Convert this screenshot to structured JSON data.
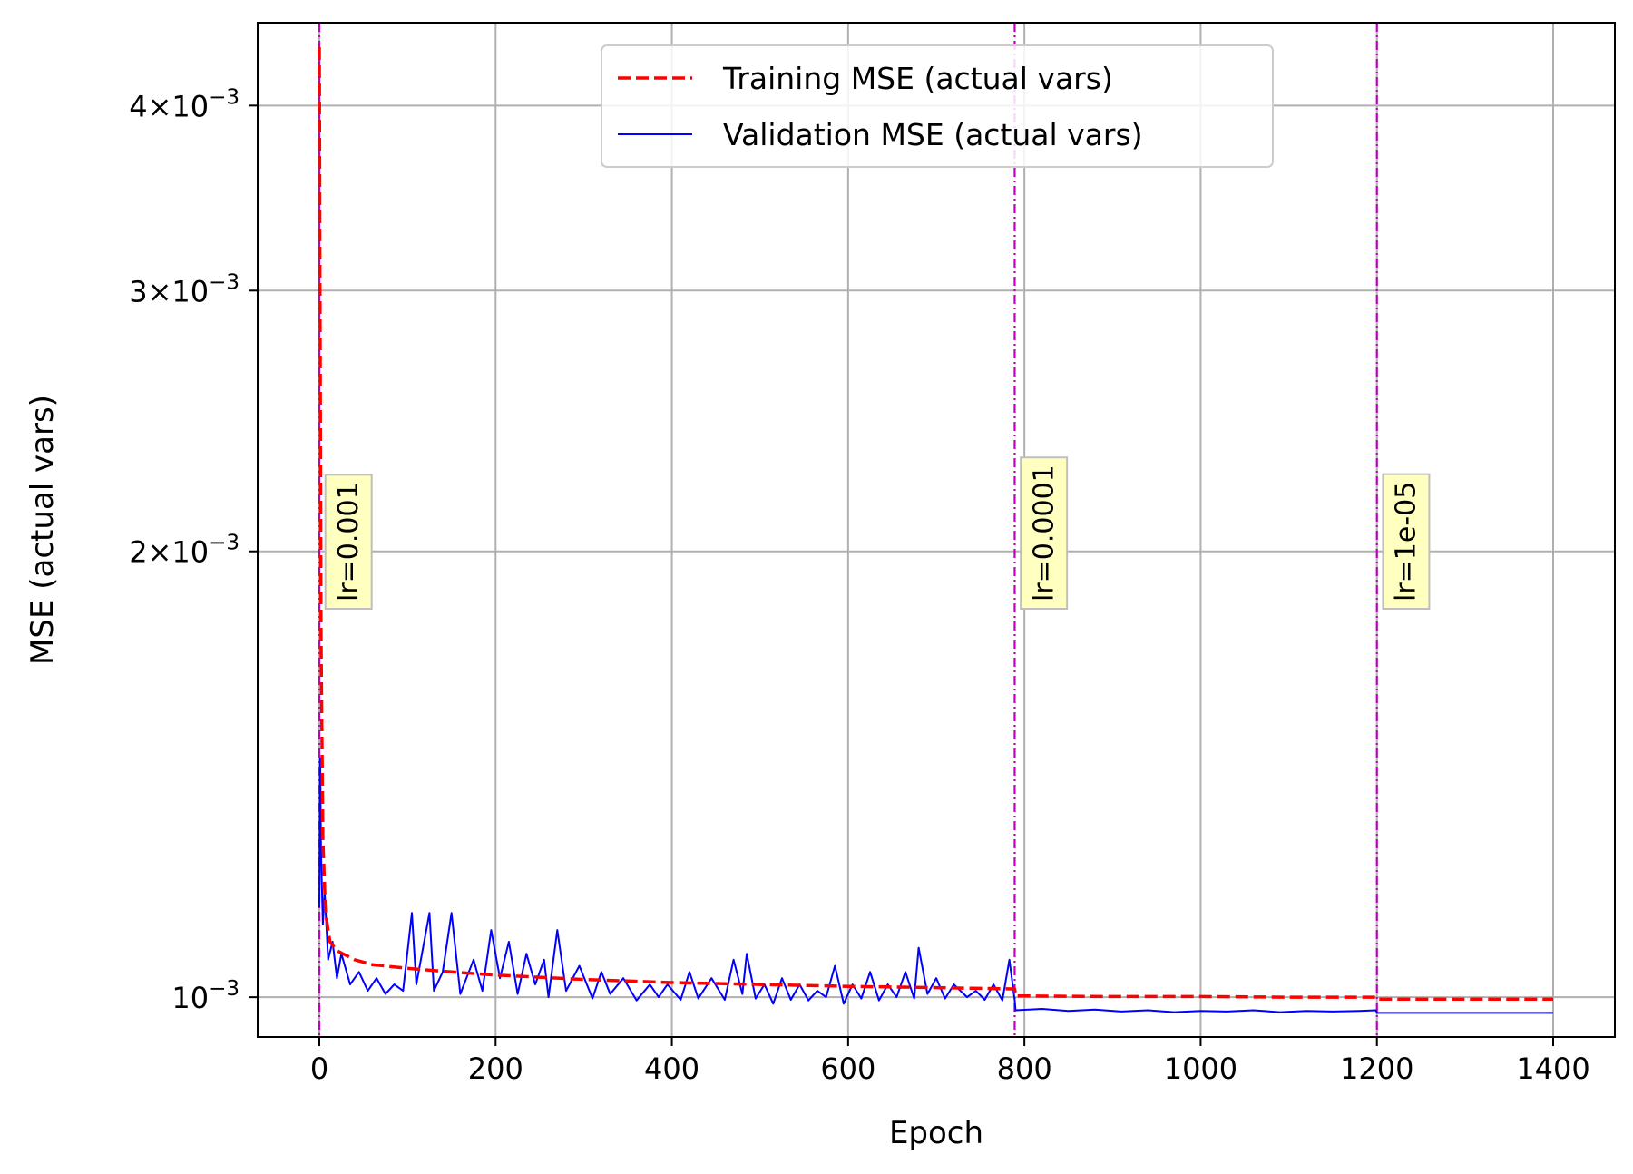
{
  "chart_data": {
    "type": "line",
    "title": "",
    "xlabel": "Epoch",
    "ylabel": "MSE (actual vars)",
    "xlim": [
      -70,
      1470
    ],
    "ylim": [
      0.00094,
      0.00455
    ],
    "yscale": "log",
    "grid": true,
    "legend_position": "upper center",
    "x_ticks": [
      0,
      200,
      400,
      600,
      800,
      1000,
      1200,
      1400
    ],
    "x_tick_labels": [
      "0",
      "200",
      "400",
      "600",
      "800",
      "1000",
      "1200",
      "1400"
    ],
    "y_ticks": [
      {
        "value": 0.004,
        "mantissa": "4",
        "exponent": "−3"
      },
      {
        "value": 0.003,
        "mantissa": "3",
        "exponent": "−3"
      },
      {
        "value": 0.002,
        "mantissa": "2",
        "exponent": "−3"
      },
      {
        "value": 0.001,
        "mantissa": "",
        "exponent": "−3"
      }
    ],
    "y_tick_base": "10",
    "series": [
      {
        "name": "Training MSE (actual vars)",
        "color": "#ff0000",
        "style": "dashed",
        "points": [
          [
            0,
            0.00438
          ],
          [
            2,
            0.00175
          ],
          [
            4,
            0.00128
          ],
          [
            7,
            0.00114
          ],
          [
            12,
            0.00109
          ],
          [
            20,
            0.001075
          ],
          [
            40,
            0.00106
          ],
          [
            60,
            0.001052
          ],
          [
            100,
            0.001046
          ],
          [
            150,
            0.00104
          ],
          [
            200,
            0.001035
          ],
          [
            300,
            0.001028
          ],
          [
            400,
            0.001023
          ],
          [
            500,
            0.00102
          ],
          [
            600,
            0.001017
          ],
          [
            700,
            0.001015
          ],
          [
            789,
            0.001013
          ],
          [
            790,
            0.001002
          ],
          [
            900,
            0.001001
          ],
          [
            1000,
            0.001001
          ],
          [
            1100,
            0.001
          ],
          [
            1200,
            0.001
          ],
          [
            1201,
            0.000997
          ],
          [
            1300,
            0.000997
          ],
          [
            1400,
            0.000997
          ]
        ]
      },
      {
        "name": "Validation MSE (actual vars)",
        "color": "#0000ff",
        "style": "solid",
        "points": [
          [
            0,
            0.00115
          ],
          [
            1,
            0.00145
          ],
          [
            2,
            0.00125
          ],
          [
            4,
            0.00112
          ],
          [
            6,
            0.00118
          ],
          [
            10,
            0.00106
          ],
          [
            15,
            0.00109
          ],
          [
            20,
            0.00103
          ],
          [
            25,
            0.00107
          ],
          [
            35,
            0.00102
          ],
          [
            45,
            0.00104
          ],
          [
            55,
            0.00101
          ],
          [
            65,
            0.00103
          ],
          [
            75,
            0.001005
          ],
          [
            85,
            0.00102
          ],
          [
            95,
            0.00101
          ],
          [
            105,
            0.00114
          ],
          [
            110,
            0.00102
          ],
          [
            125,
            0.00114
          ],
          [
            130,
            0.00101
          ],
          [
            140,
            0.00104
          ],
          [
            150,
            0.00114
          ],
          [
            160,
            0.001005
          ],
          [
            175,
            0.00106
          ],
          [
            185,
            0.00101
          ],
          [
            195,
            0.00111
          ],
          [
            205,
            0.00103
          ],
          [
            215,
            0.00109
          ],
          [
            225,
            0.001005
          ],
          [
            235,
            0.00107
          ],
          [
            245,
            0.00102
          ],
          [
            255,
            0.00106
          ],
          [
            260,
            0.001
          ],
          [
            270,
            0.00111
          ],
          [
            280,
            0.00101
          ],
          [
            295,
            0.00105
          ],
          [
            310,
            0.000998
          ],
          [
            320,
            0.00104
          ],
          [
            330,
            0.001005
          ],
          [
            345,
            0.00103
          ],
          [
            360,
            0.000995
          ],
          [
            375,
            0.00102
          ],
          [
            385,
            0.001
          ],
          [
            395,
            0.00102
          ],
          [
            410,
            0.000996
          ],
          [
            420,
            0.00104
          ],
          [
            430,
            0.000998
          ],
          [
            445,
            0.00103
          ],
          [
            460,
            0.000996
          ],
          [
            470,
            0.00106
          ],
          [
            480,
            0.001005
          ],
          [
            485,
            0.00107
          ],
          [
            495,
            0.000998
          ],
          [
            505,
            0.00102
          ],
          [
            515,
            0.00099
          ],
          [
            525,
            0.00103
          ],
          [
            535,
            0.000996
          ],
          [
            545,
            0.00102
          ],
          [
            555,
            0.000995
          ],
          [
            565,
            0.00101
          ],
          [
            575,
            0.001
          ],
          [
            585,
            0.00105
          ],
          [
            595,
            0.00099
          ],
          [
            605,
            0.00102
          ],
          [
            615,
            0.000998
          ],
          [
            625,
            0.00104
          ],
          [
            635,
            0.000995
          ],
          [
            645,
            0.00102
          ],
          [
            655,
            0.001
          ],
          [
            665,
            0.00104
          ],
          [
            675,
            0.000998
          ],
          [
            680,
            0.00108
          ],
          [
            690,
            0.001005
          ],
          [
            700,
            0.00103
          ],
          [
            710,
            0.000998
          ],
          [
            720,
            0.00102
          ],
          [
            735,
            0.001
          ],
          [
            745,
            0.00101
          ],
          [
            755,
            0.000996
          ],
          [
            765,
            0.00102
          ],
          [
            775,
            0.000995
          ],
          [
            783,
            0.00106
          ],
          [
            789,
            0.000995
          ],
          [
            790,
            0.00098
          ],
          [
            820,
            0.000982
          ],
          [
            850,
            0.000979
          ],
          [
            880,
            0.000981
          ],
          [
            910,
            0.000978
          ],
          [
            940,
            0.00098
          ],
          [
            970,
            0.000977
          ],
          [
            1000,
            0.000979
          ],
          [
            1030,
            0.000978
          ],
          [
            1060,
            0.00098
          ],
          [
            1090,
            0.000977
          ],
          [
            1120,
            0.000979
          ],
          [
            1150,
            0.000978
          ],
          [
            1180,
            0.000979
          ],
          [
            1199,
            0.00098
          ],
          [
            1200,
            0.000976
          ],
          [
            1250,
            0.000976
          ],
          [
            1300,
            0.000976
          ],
          [
            1350,
            0.000976
          ],
          [
            1400,
            0.000976
          ]
        ]
      }
    ],
    "lr_changes": [
      {
        "epoch": 0,
        "label": "lr=0.001"
      },
      {
        "epoch": 789,
        "label": "lr=0.0001"
      },
      {
        "epoch": 1200,
        "label": "lr=1e-05"
      }
    ],
    "colors": {
      "lr_line": "#bf00bf",
      "annotation_fill": "#ffffc0",
      "annotation_border": "#bfbfbf",
      "grid": "#b0b0b0"
    }
  }
}
